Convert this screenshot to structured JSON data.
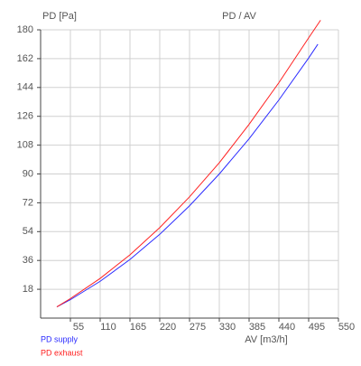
{
  "chart_data": {
    "type": "line",
    "title": "PD / AV",
    "y_label": "PD [Pa]",
    "x_label": "AV [m3/h]",
    "xlim": [
      0,
      550
    ],
    "ylim": [
      0,
      180
    ],
    "xticks": [
      55,
      110,
      165,
      220,
      275,
      330,
      385,
      440,
      495,
      550
    ],
    "yticks": [
      18,
      36,
      54,
      72,
      90,
      108,
      126,
      144,
      162,
      180
    ],
    "grid": true,
    "legend": "bottom-left",
    "series": [
      {
        "name": "PD supply",
        "color": "#2b2bff",
        "x": [
          30,
          55,
          110,
          165,
          220,
          275,
          330,
          385,
          440,
          495,
          512
        ],
        "values": [
          7,
          11.5,
          23,
          36.6,
          52.3,
          70.1,
          90,
          112,
          136.2,
          162.4,
          171
        ]
      },
      {
        "name": "PD exhaust",
        "color": "#ff2020",
        "x": [
          30,
          55,
          110,
          165,
          220,
          275,
          330,
          385,
          440,
          495,
          517
        ],
        "values": [
          7,
          12.2,
          24.8,
          39.5,
          56.5,
          75.7,
          97,
          121,
          147,
          175,
          186
        ]
      }
    ]
  }
}
